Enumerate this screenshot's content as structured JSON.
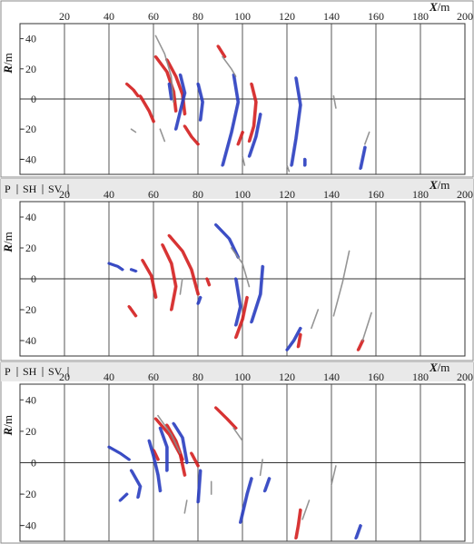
{
  "chart_data": [
    {
      "type": "scatter",
      "panel_index": 1,
      "tabs": [],
      "xlabel": "X/m",
      "ylabel": "R/m",
      "xlim": [
        0,
        200
      ],
      "ylim": [
        -50,
        50
      ],
      "xticks": [
        "20",
        "40",
        "60",
        "80",
        "100",
        "120",
        "140",
        "160",
        "180",
        "200"
      ],
      "yticks": [
        "40",
        "20",
        "0",
        "−20",
        "−40"
      ],
      "grid": true,
      "series": [
        {
          "color": "#d42020",
          "segments": [
            [
              [
                61,
                28
              ],
              [
                66,
                18
              ],
              [
                69,
                5
              ],
              [
                70,
                -8
              ]
            ],
            [
              [
                66,
                26
              ],
              [
                70,
                15
              ],
              [
                73,
                3
              ],
              [
                74,
                -10
              ]
            ],
            [
              [
                48,
                10
              ],
              [
                51,
                6
              ],
              [
                53,
                2
              ]
            ],
            [
              [
                54,
                2
              ],
              [
                58,
                -8
              ],
              [
                60,
                -15
              ]
            ],
            [
              [
                74,
                -18
              ],
              [
                77,
                -25
              ],
              [
                80,
                -30
              ]
            ],
            [
              [
                89,
                35
              ],
              [
                92,
                28
              ]
            ],
            [
              [
                104,
                10
              ],
              [
                106,
                -2
              ],
              [
                105,
                -18
              ],
              [
                103,
                -28
              ]
            ],
            [
              [
                100,
                -22
              ],
              [
                98,
                -30
              ]
            ]
          ]
        },
        {
          "color": "#2a3ec0",
          "segments": [
            [
              [
                72,
                16
              ],
              [
                74,
                4
              ],
              [
                72,
                -8
              ],
              [
                70,
                -20
              ]
            ],
            [
              [
                80,
                10
              ],
              [
                82,
                -2
              ],
              [
                81,
                -14
              ]
            ],
            [
              [
                96,
                16
              ],
              [
                98,
                -2
              ],
              [
                95,
                -22
              ],
              [
                91,
                -44
              ]
            ],
            [
              [
                108,
                -10
              ],
              [
                106,
                -25
              ],
              [
                103,
                -38
              ]
            ],
            [
              [
                124,
                14
              ],
              [
                126,
                -4
              ],
              [
                124,
                -26
              ],
              [
                122,
                -44
              ]
            ],
            [
              [
                155,
                -32
              ],
              [
                153,
                -46
              ]
            ],
            [
              [
                128,
                -40
              ],
              [
                128,
                -44
              ]
            ],
            [
              [
                67,
                10
              ],
              [
                68,
                0
              ]
            ]
          ]
        },
        {
          "color": "#8a8a8a",
          "segments": [
            [
              [
                61,
                42
              ],
              [
                65,
                30
              ],
              [
                68,
                15
              ],
              [
                69,
                -2
              ]
            ],
            [
              [
                91,
                28
              ],
              [
                95,
                20
              ],
              [
                97,
                15
              ]
            ],
            [
              [
                100,
                -38
              ],
              [
                101,
                -44
              ]
            ],
            [
              [
                141,
                2
              ],
              [
                142,
                -6
              ]
            ],
            [
              [
                157,
                -22
              ],
              [
                155,
                -30
              ]
            ],
            [
              [
                50,
                -20
              ],
              [
                52,
                -22
              ]
            ],
            [
              [
                120,
                -44
              ],
              [
                121,
                -48
              ]
            ],
            [
              [
                63,
                -20
              ],
              [
                65,
                -28
              ]
            ]
          ]
        }
      ]
    },
    {
      "type": "scatter",
      "panel_index": 2,
      "tabs": [
        "P",
        "SH",
        "SV"
      ],
      "xlabel": "X/m",
      "ylabel": "R/m",
      "xlim": [
        0,
        200
      ],
      "ylim": [
        -50,
        50
      ],
      "xticks": [
        "20",
        "40",
        "60",
        "80",
        "100",
        "120",
        "140",
        "160",
        "180",
        "200"
      ],
      "yticks": [
        "40",
        "20",
        "0",
        "−20",
        "−40"
      ],
      "grid": true,
      "series": [
        {
          "color": "#d42020",
          "segments": [
            [
              [
                64,
                22
              ],
              [
                68,
                10
              ],
              [
                70,
                -5
              ],
              [
                68,
                -20
              ]
            ],
            [
              [
                55,
                12
              ],
              [
                59,
                2
              ],
              [
                61,
                -12
              ]
            ],
            [
              [
                67,
                28
              ],
              [
                73,
                18
              ],
              [
                77,
                6
              ],
              [
                80,
                -10
              ]
            ],
            [
              [
                49,
                -18
              ],
              [
                52,
                -24
              ]
            ],
            [
              [
                102,
                -12
              ],
              [
                100,
                -26
              ],
              [
                97,
                -38
              ]
            ],
            [
              [
                126,
                -36
              ],
              [
                125,
                -44
              ]
            ],
            [
              [
                154,
                -40
              ],
              [
                152,
                -46
              ]
            ],
            [
              [
                84,
                0
              ],
              [
                85,
                -4
              ]
            ]
          ]
        },
        {
          "color": "#2a3ec0",
          "segments": [
            [
              [
                40,
                10
              ],
              [
                44,
                8
              ],
              [
                46,
                6
              ]
            ],
            [
              [
                88,
                35
              ],
              [
                94,
                26
              ],
              [
                98,
                14
              ]
            ],
            [
              [
                97,
                0
              ],
              [
                99,
                -18
              ],
              [
                97,
                -30
              ]
            ],
            [
              [
                109,
                8
              ],
              [
                108,
                -10
              ],
              [
                104,
                -28
              ]
            ],
            [
              [
                126,
                -32
              ],
              [
                123,
                -40
              ],
              [
                120,
                -46
              ]
            ],
            [
              [
                81,
                -12
              ],
              [
                80,
                -16
              ]
            ],
            [
              [
                50,
                6
              ],
              [
                52,
                5
              ]
            ]
          ]
        },
        {
          "color": "#8a8a8a",
          "segments": [
            [
              [
                95,
                20
              ],
              [
                100,
                10
              ],
              [
                103,
                -5
              ]
            ],
            [
              [
                148,
                18
              ],
              [
                145,
                -2
              ],
              [
                141,
                -24
              ]
            ],
            [
              [
                158,
                -22
              ],
              [
                154,
                -40
              ]
            ],
            [
              [
                134,
                -20
              ],
              [
                131,
                -32
              ]
            ],
            [
              [
                73,
                0
              ],
              [
                72,
                -10
              ]
            ]
          ]
        }
      ]
    },
    {
      "type": "scatter",
      "panel_index": 3,
      "tabs": [
        "P",
        "SH",
        "SV"
      ],
      "xlabel": "X/m",
      "ylabel": "R/m",
      "xlim": [
        0,
        200
      ],
      "ylim": [
        -50,
        50
      ],
      "xticks": [
        "20",
        "40",
        "60",
        "80",
        "100",
        "120",
        "140",
        "160",
        "180",
        "200"
      ],
      "yticks": [
        "40",
        "20",
        "0",
        "−20",
        "−40"
      ],
      "grid": true,
      "series": [
        {
          "color": "#d42020",
          "segments": [
            [
              [
                61,
                28
              ],
              [
                67,
                18
              ],
              [
                72,
                5
              ],
              [
                74,
                -8
              ]
            ],
            [
              [
                66,
                24
              ],
              [
                70,
                14
              ],
              [
                73,
                2
              ]
            ],
            [
              [
                88,
                35
              ],
              [
                93,
                28
              ],
              [
                97,
                22
              ]
            ],
            [
              [
                77,
                6
              ],
              [
                80,
                -2
              ]
            ],
            [
              [
                126,
                -30
              ],
              [
                125,
                -40
              ],
              [
                124,
                -48
              ]
            ],
            [
              [
                60,
                8
              ],
              [
                62,
                2
              ]
            ]
          ]
        },
        {
          "color": "#2a3ec0",
          "segments": [
            [
              [
                40,
                10
              ],
              [
                45,
                6
              ],
              [
                49,
                2
              ]
            ],
            [
              [
                58,
                14
              ],
              [
                60,
                4
              ],
              [
                62,
                -8
              ],
              [
                63,
                -18
              ]
            ],
            [
              [
                63,
                22
              ],
              [
                66,
                10
              ],
              [
                66,
                -5
              ]
            ],
            [
              [
                69,
                25
              ],
              [
                73,
                16
              ],
              [
                75,
                0
              ]
            ],
            [
              [
                50,
                -5
              ],
              [
                54,
                -15
              ],
              [
                53,
                -22
              ]
            ],
            [
              [
                81,
                -5
              ],
              [
                80,
                -25
              ]
            ],
            [
              [
                104,
                -10
              ],
              [
                102,
                -20
              ],
              [
                99,
                -38
              ]
            ],
            [
              [
                48,
                -20
              ],
              [
                45,
                -24
              ]
            ],
            [
              [
                153,
                -40
              ],
              [
                151,
                -48
              ]
            ],
            [
              [
                112,
                -10
              ],
              [
                110,
                -18
              ]
            ]
          ]
        },
        {
          "color": "#8a8a8a",
          "segments": [
            [
              [
                62,
                30
              ],
              [
                68,
                18
              ],
              [
                72,
                6
              ]
            ],
            [
              [
                96,
                22
              ],
              [
                100,
                14
              ]
            ],
            [
              [
                109,
                2
              ],
              [
                108,
                -8
              ]
            ],
            [
              [
                142,
                -2
              ],
              [
                140,
                -14
              ]
            ],
            [
              [
                130,
                -24
              ],
              [
                127,
                -36
              ]
            ],
            [
              [
                86,
                -12
              ],
              [
                86,
                -20
              ]
            ],
            [
              [
                75,
                -24
              ],
              [
                74,
                -32
              ]
            ]
          ]
        }
      ]
    }
  ]
}
